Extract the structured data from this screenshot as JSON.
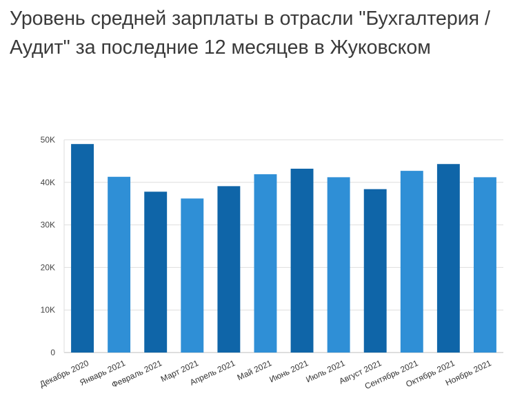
{
  "title": "Уровень средней зарплаты в отрасли \"Бухгалтерия / Аудит\" за последние 12 месяцев в Жуковском",
  "chart_data": {
    "type": "bar",
    "title": "Уровень средней зарплаты в отрасли \"Бухгалтерия / Аудит\" за последние 12 месяцев в Жуковском",
    "xlabel": "",
    "ylabel": "",
    "categories": [
      "Декабрь 2020",
      "Январь 2021",
      "Февраль 2021",
      "Март 2021",
      "Апрель 2021",
      "Май 2021",
      "Июнь 2021",
      "Июль 2021",
      "Август 2021",
      "Сентябрь 2021",
      "Октябрь 2021",
      "Ноябрь 2021"
    ],
    "values": [
      49000,
      41300,
      37800,
      36200,
      39100,
      41900,
      43200,
      41200,
      38400,
      42700,
      44300,
      41200
    ],
    "ylim": [
      0,
      50000
    ],
    "yticks": [
      0,
      10000,
      20000,
      30000,
      40000,
      50000
    ],
    "ytick_labels": [
      "0",
      "10K",
      "20K",
      "30K",
      "40K",
      "50K"
    ],
    "grid": true,
    "colors": [
      "#0f65a8",
      "#2f8fd6"
    ]
  }
}
